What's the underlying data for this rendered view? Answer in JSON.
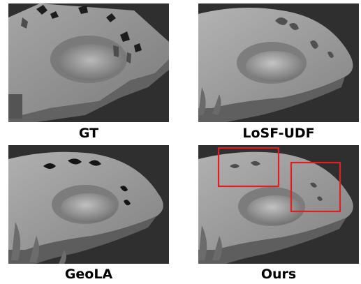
{
  "figure": {
    "panels": [
      {
        "id": "gt",
        "caption": "GT"
      },
      {
        "id": "losf-udf",
        "caption": "LoSF-UDF"
      },
      {
        "id": "geola",
        "caption": "GeoLA"
      },
      {
        "id": "ours",
        "caption": "Ours",
        "highlight_color": "#e02020"
      }
    ],
    "colors": {
      "viewport_background": "#2f2f2f",
      "mesh_gray": "#8f8f8f",
      "highlight": "#e02020"
    }
  }
}
